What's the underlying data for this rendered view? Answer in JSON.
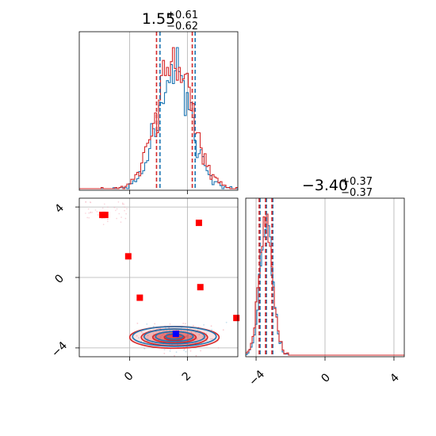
{
  "chart_data": [
    {
      "panel": "marginal-x",
      "type": "histogram",
      "title": {
        "base": "1.55",
        "sup": "+0.61",
        "sub": "−0.62"
      },
      "xlim": [
        -1.75,
        3.75
      ],
      "grid": true,
      "series": [
        {
          "name": "",
          "color": "#1f77b4",
          "mean": 1.55,
          "sd": 0.58,
          "quantiles": [
            1.05,
            2.27
          ]
        },
        {
          "name": "",
          "color": "#d62728",
          "mean": 1.55,
          "sd": 0.62,
          "quantiles": [
            0.93,
            2.17
          ]
        }
      ]
    },
    {
      "panel": "marginal-y",
      "type": "histogram",
      "title": {
        "base": "−3.40",
        "sup": "+0.37",
        "sub": "−0.37"
      },
      "xlim": [
        -4.6,
        4.6
      ],
      "xticks": [
        "−4",
        "0",
        "4"
      ],
      "grid": true,
      "series": [
        {
          "name": "",
          "color": "#1f77b4",
          "mean": -3.4,
          "sd": 0.36,
          "quantiles": [
            -3.77,
            -3.03
          ]
        },
        {
          "name": "",
          "color": "#d62728",
          "mean": -3.45,
          "sd": 0.38,
          "quantiles": [
            -3.82,
            -3.08
          ]
        }
      ]
    },
    {
      "panel": "joint",
      "type": "scatter",
      "xlim": [
        -1.75,
        3.75
      ],
      "ylim": [
        -4.5,
        4.5
      ],
      "xticks": [
        "0",
        "2"
      ],
      "yticks": [
        "−4",
        "0",
        "4"
      ],
      "grid": true,
      "contours": [
        {
          "color": "#d62728",
          "center": [
            1.55,
            -3.4
          ],
          "rx": [
            0.35,
            0.75,
            1.15,
            1.55
          ],
          "ry": [
            0.18,
            0.32,
            0.48,
            0.62
          ]
        },
        {
          "color": "#1f77b4",
          "center": [
            1.55,
            -3.35
          ],
          "rx": [
            0.3,
            0.65,
            1.05,
            1.45
          ],
          "ry": [
            0.15,
            0.28,
            0.42,
            0.56
          ]
        }
      ],
      "red_points": [
        {
          "x": -0.85,
          "y": 3.55
        },
        {
          "x": -0.95,
          "y": 3.55
        },
        {
          "x": -0.05,
          "y": 1.2
        },
        {
          "x": 2.4,
          "y": 3.1
        },
        {
          "x": 2.45,
          "y": -0.55
        },
        {
          "x": 0.35,
          "y": -1.15
        },
        {
          "x": 3.7,
          "y": -2.3
        },
        {
          "x": 1.6,
          "y": -3.2
        }
      ],
      "blue_points": [
        {
          "x": 1.6,
          "y": -3.2
        }
      ]
    }
  ]
}
